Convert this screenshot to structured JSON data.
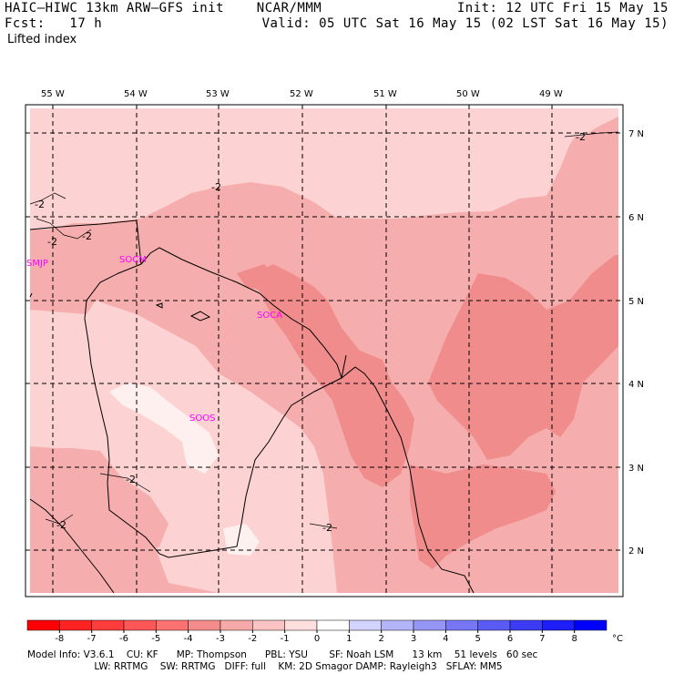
{
  "header": {
    "model_title": "HAIC–HIWC 13km ARW–GFS init    NCAR/MMM",
    "forecast": "Fcst:   17 h",
    "field": "Lifted index",
    "init": "Init: 12 UTC Fri 15 May 15",
    "valid": "Valid: 05 UTC Sat 16 May 15 (02 LST Sat 16 May 15)"
  },
  "map": {
    "lon_labels": [
      "55 W",
      "54 W",
      "53 W",
      "52 W",
      "51 W",
      "50 W",
      "49 W"
    ],
    "lat_labels": [
      "7 N",
      "6 N",
      "5 N",
      "4 N",
      "3 N",
      "2 N"
    ],
    "stations": [
      "SMJP",
      "SOCM",
      "SOCA",
      "SOOS"
    ],
    "contour_labels": [
      "-2",
      "-2",
      "-2",
      "-2",
      "-2",
      "-2",
      "-2",
      "-2"
    ],
    "colors": {
      "li_m3": "#f08c8c",
      "li_m2": "#f6adad",
      "li_m1": "#fcd2d2",
      "li_0": "#fff0f0",
      "station_text": "#ff00ff",
      "grid": "#000000"
    }
  },
  "colorbar": {
    "unit": "°C",
    "tick_labels": [
      "-8",
      "-7",
      "-6",
      "-5",
      "-4",
      "-3",
      "-2",
      "-1",
      "0",
      "1",
      "2",
      "3",
      "4",
      "5",
      "6",
      "7",
      "8"
    ],
    "colors": [
      "#ff0000",
      "#ff2222",
      "#ff3c3c",
      "#ff5757",
      "#ff7272",
      "#f58c8c",
      "#f7a8a8",
      "#fbc3c3",
      "#ffdede",
      "#ffffff",
      "#d3d3ff",
      "#b4b4fb",
      "#9696f7",
      "#7777f5",
      "#5a5af5",
      "#3c3cf5",
      "#1e1ef8",
      "#0000ff"
    ]
  },
  "footer": {
    "line1": "Model Info: V3.6.1    CU: KF      MP: Thompson      PBL: YSU       SF: Noah LSM      13 km    51 levels   60 sec",
    "line2": "                      LW: RRTMG    SW: RRTMG   DIFF: full    KM: 2D Smagor DAMP: Rayleigh3   SFLAY: MM5"
  }
}
